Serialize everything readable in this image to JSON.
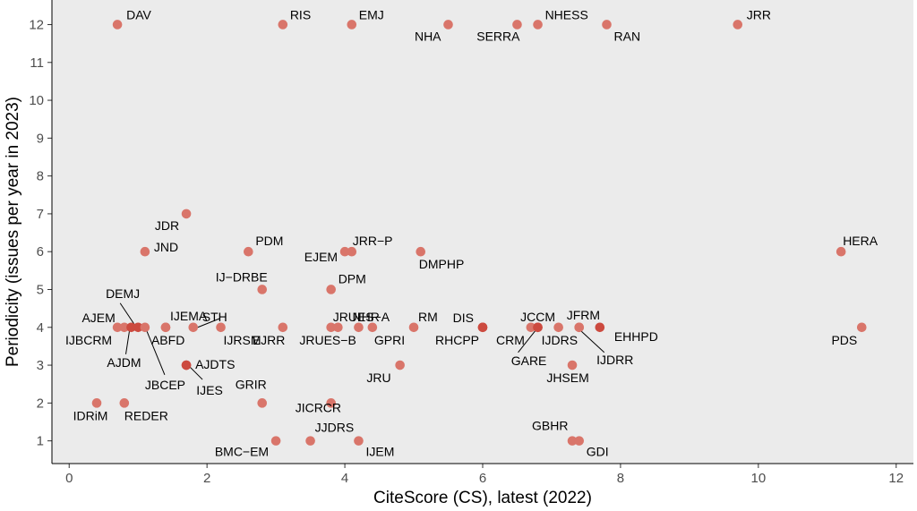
{
  "chart_data": {
    "type": "scatter",
    "title": "",
    "xlabel": "CiteScore (CS), latest (2022)",
    "ylabel": "Periodicity (issues per year in 2023)",
    "xlim": [
      -0.25,
      12.25
    ],
    "ylim": [
      0.4,
      12.65
    ],
    "xticks": [
      0,
      2,
      4,
      6,
      8,
      10,
      12
    ],
    "yticks": [
      1,
      2,
      3,
      4,
      5,
      6,
      7,
      8,
      9,
      10,
      11,
      12
    ],
    "colors": {
      "panel": "#ebebeb",
      "point": "#d9756a",
      "point_dark": "#cc4a3f"
    },
    "points": [
      {
        "label": "DAV",
        "x": 0.7,
        "y": 12
      },
      {
        "label": "RIS",
        "x": 3.1,
        "y": 12
      },
      {
        "label": "EMJ",
        "x": 4.1,
        "y": 12
      },
      {
        "label": "NHA",
        "x": 5.5,
        "y": 12
      },
      {
        "label": "SERRA",
        "x": 6.5,
        "y": 12
      },
      {
        "label": "NHESS",
        "x": 6.8,
        "y": 12
      },
      {
        "label": "RAN",
        "x": 7.8,
        "y": 12
      },
      {
        "label": "JRR",
        "x": 9.7,
        "y": 12
      },
      {
        "label": "JDR",
        "x": 1.7,
        "y": 7
      },
      {
        "label": "JND",
        "x": 1.1,
        "y": 6
      },
      {
        "label": "PDM",
        "x": 2.6,
        "y": 6
      },
      {
        "label": "EJEM",
        "x": 4.0,
        "y": 6
      },
      {
        "label": "JRR−P",
        "x": 4.1,
        "y": 6
      },
      {
        "label": "DMPHP",
        "x": 5.1,
        "y": 6
      },
      {
        "label": "HERA",
        "x": 11.2,
        "y": 6
      },
      {
        "label": "IJ−DRBE",
        "x": 2.8,
        "y": 5
      },
      {
        "label": "DPM",
        "x": 3.8,
        "y": 5
      },
      {
        "label": "IJBCRM",
        "x": 0.7,
        "y": 4
      },
      {
        "label": "AJEM",
        "x": 0.8,
        "y": 4
      },
      {
        "label": "AJDM",
        "x": 0.9,
        "y": 4,
        "dark": true
      },
      {
        "label": "DEMJ",
        "x": 1.0,
        "y": 4,
        "dark": true
      },
      {
        "label": "JBCEP",
        "x": 1.1,
        "y": 4
      },
      {
        "label": "IJEMA",
        "x": 1.4,
        "y": 4
      },
      {
        "label": "ABFD",
        "x": 1.4,
        "y": 4
      },
      {
        "label": "STH",
        "x": 1.8,
        "y": 4
      },
      {
        "label": "IJRSM",
        "x": 2.2,
        "y": 4
      },
      {
        "label": "EJRR",
        "x": 3.1,
        "y": 4
      },
      {
        "label": "JRUES−A",
        "x": 3.8,
        "y": 4
      },
      {
        "label": "JRUES−B",
        "x": 3.9,
        "y": 4
      },
      {
        "label": "NHR",
        "x": 4.2,
        "y": 4
      },
      {
        "label": "GPRI",
        "x": 4.4,
        "y": 4
      },
      {
        "label": "RM",
        "x": 5.0,
        "y": 4
      },
      {
        "label": "DIS",
        "x": 6.0,
        "y": 4,
        "dark": true
      },
      {
        "label": "RHCPP",
        "x": 6.0,
        "y": 4,
        "dark": true
      },
      {
        "label": "CRM",
        "x": 6.7,
        "y": 4
      },
      {
        "label": "JCCM",
        "x": 6.8,
        "y": 4,
        "dark": true
      },
      {
        "label": "GARE",
        "x": 6.8,
        "y": 4,
        "dark": true
      },
      {
        "label": "IJDRS",
        "x": 7.1,
        "y": 4
      },
      {
        "label": "JFRM",
        "x": 7.4,
        "y": 4
      },
      {
        "label": "IJDRR",
        "x": 7.4,
        "y": 4
      },
      {
        "label": "EHHPD",
        "x": 7.7,
        "y": 4,
        "dark": true
      },
      {
        "label": "PDS",
        "x": 11.5,
        "y": 4
      },
      {
        "label": "AJDTS",
        "x": 1.7,
        "y": 3,
        "dark": true
      },
      {
        "label": "IJES",
        "x": 1.7,
        "y": 3,
        "dark": true
      },
      {
        "label": "JRU",
        "x": 4.8,
        "y": 3
      },
      {
        "label": "JHSEM",
        "x": 7.3,
        "y": 3
      },
      {
        "label": "IDRiM",
        "x": 0.4,
        "y": 2
      },
      {
        "label": "REDER",
        "x": 0.8,
        "y": 2
      },
      {
        "label": "GRIR",
        "x": 2.8,
        "y": 2
      },
      {
        "label": "JICRCR",
        "x": 3.8,
        "y": 2
      },
      {
        "label": "BMC−EM",
        "x": 3.0,
        "y": 1
      },
      {
        "label": "JJDRS",
        "x": 3.5,
        "y": 1
      },
      {
        "label": "IJEM",
        "x": 4.2,
        "y": 1
      },
      {
        "label": "GBHR",
        "x": 7.3,
        "y": 1
      },
      {
        "label": "GDI",
        "x": 7.4,
        "y": 1
      }
    ]
  }
}
